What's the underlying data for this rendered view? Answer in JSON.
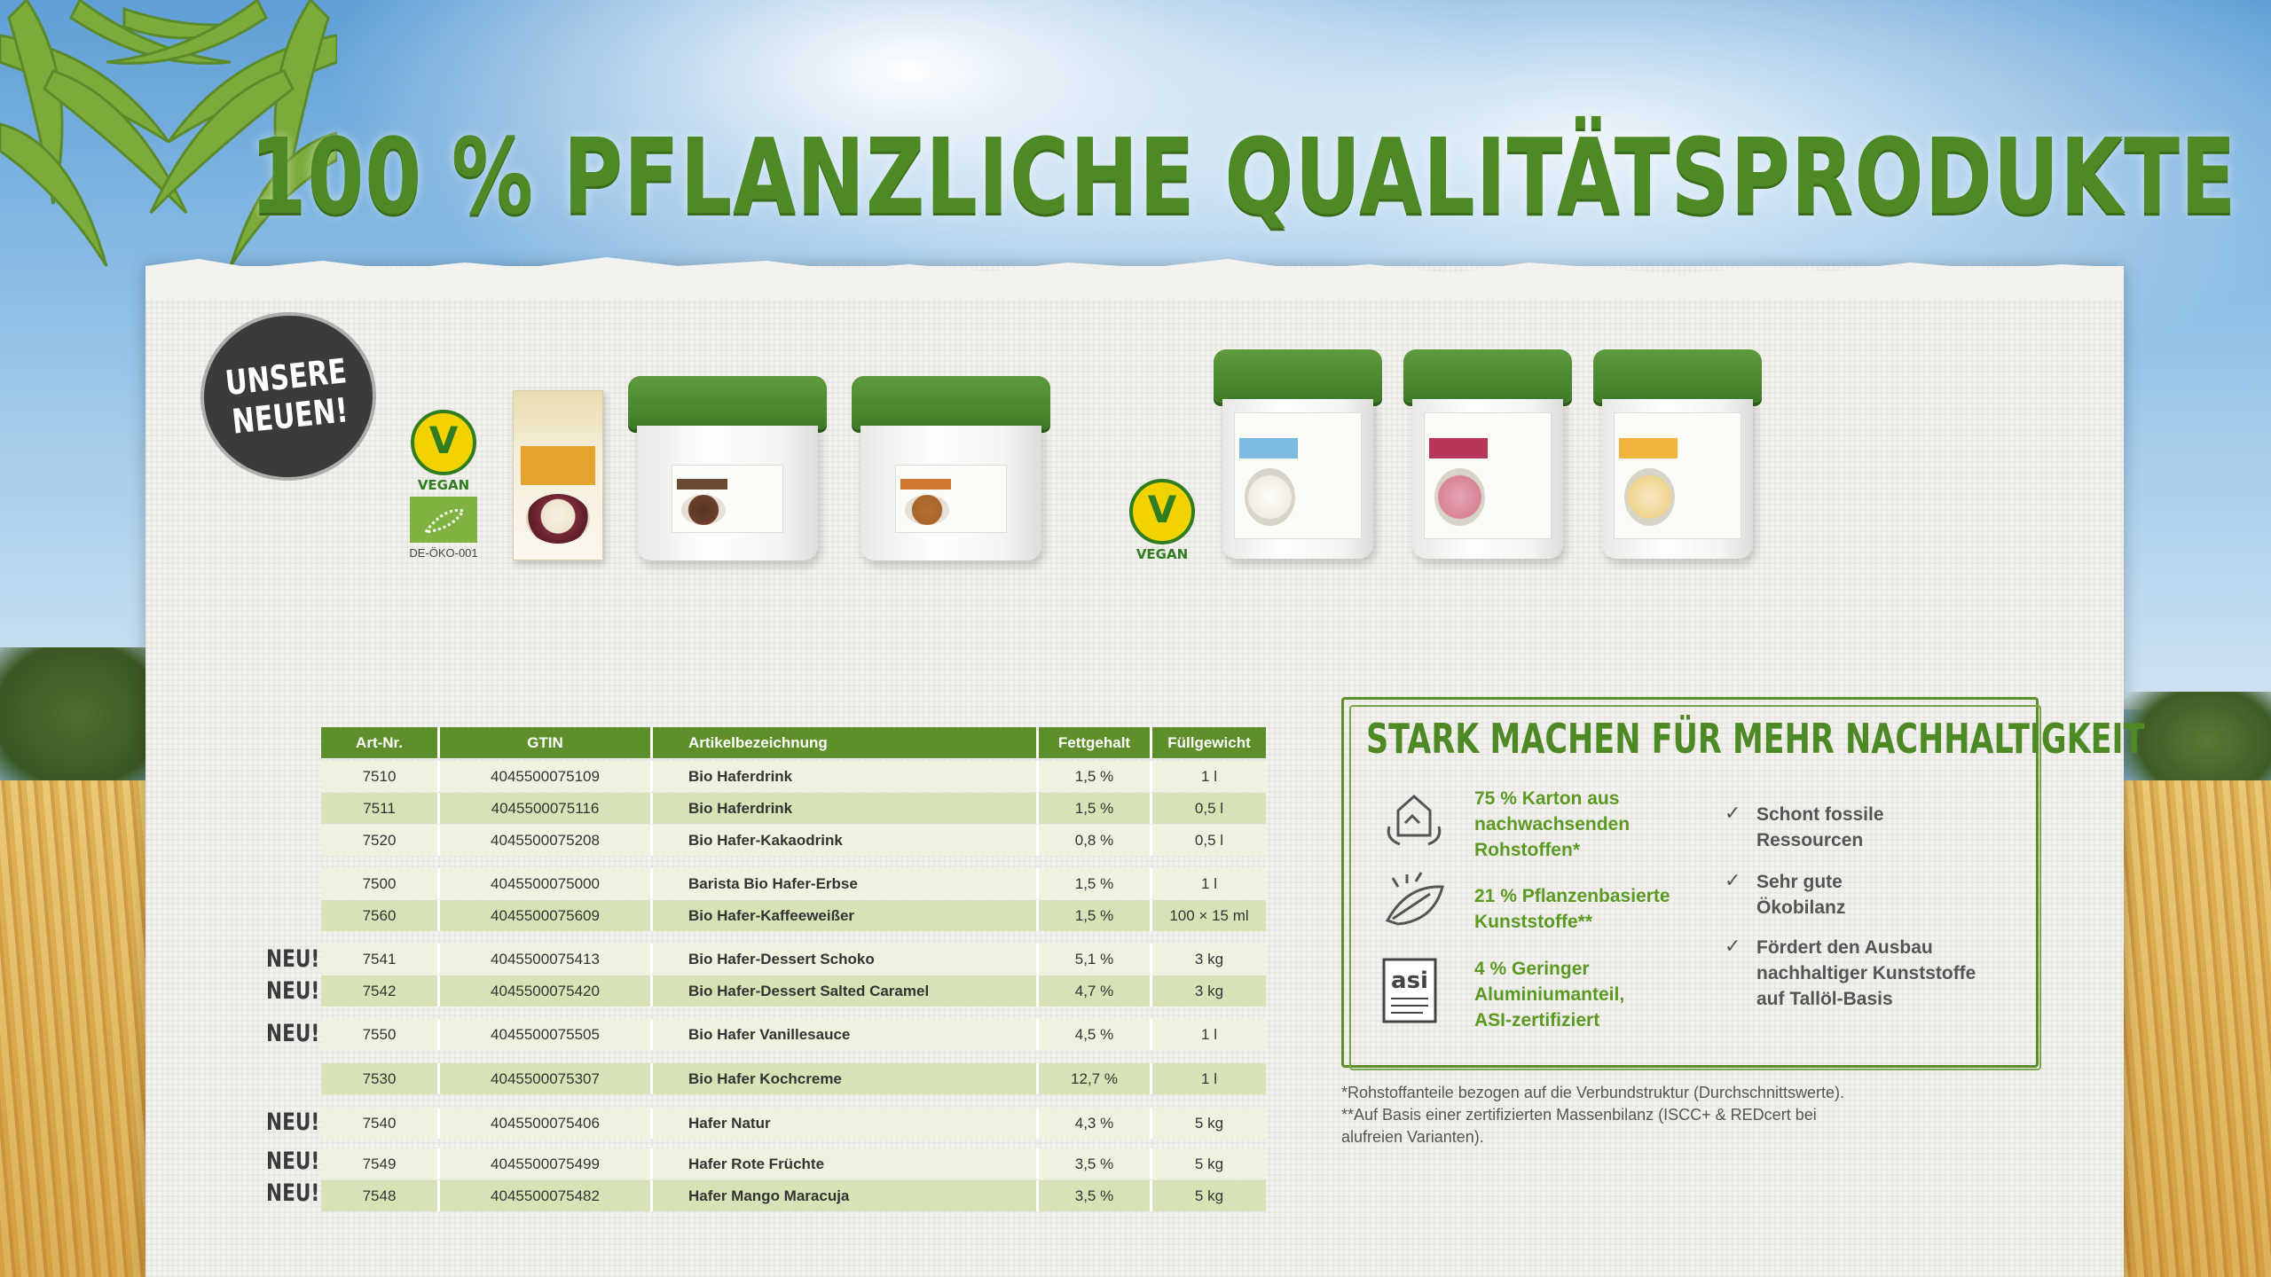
{
  "headline": "100 % PFLANZLICHE QUALITÄTSPRODUKTE",
  "badge": {
    "line1": "UNSERE",
    "line2": "NEUEN!"
  },
  "seals": {
    "vegan_label": "VEGAN",
    "eu_code": "DE-ÖKO-001"
  },
  "table": {
    "headers": [
      "Art-Nr.",
      "GTIN",
      "Artikelbezeichnung",
      "Fettgehalt",
      "Füllgewicht"
    ],
    "rows": [
      [
        "7510",
        "4045500075109",
        "Bio Haferdrink",
        "1,5 %",
        "1 l"
      ],
      [
        "7511",
        "4045500075116",
        "Bio Haferdrink",
        "1,5 %",
        "0,5 l"
      ],
      [
        "7520",
        "4045500075208",
        "Bio Hafer-Kakaodrink",
        "0,8 %",
        "0,5 l"
      ],
      [
        "7500",
        "4045500075000",
        "Barista Bio Hafer-Erbse",
        "1,5 %",
        "1 l"
      ],
      [
        "7560",
        "4045500075609",
        "Bio Hafer-Kaffeeweißer",
        "1,5 %",
        "100 × 15 ml"
      ],
      [
        "7541",
        "4045500075413",
        "Bio Hafer-Dessert Schoko",
        "5,1 %",
        "3 kg"
      ],
      [
        "7542",
        "4045500075420",
        "Bio Hafer-Dessert Salted Caramel",
        "4,7 %",
        "3 kg"
      ],
      [
        "7550",
        "4045500075505",
        "Bio Hafer Vanillesauce",
        "4,5 %",
        "1 l"
      ],
      [
        "7530",
        "4045500075307",
        "Bio Hafer Kochcreme",
        "12,7 %",
        "1 l"
      ],
      [
        "7540",
        "4045500075406",
        "Hafer Natur",
        "4,3 %",
        "5 kg"
      ],
      [
        "7549",
        "4045500075499",
        "Hafer Rote Früchte",
        "3,5 %",
        "5 kg"
      ],
      [
        "7548",
        "4045500075482",
        "Hafer Mango Maracuja",
        "3,5 %",
        "5 kg"
      ]
    ],
    "new_label": "NEU!"
  },
  "sustainability": {
    "title": "STARK MACHEN FÜR MEHR NACHHALTIGKEIT",
    "items": [
      {
        "line1": "75 % Karton aus",
        "line2": "nachwachsenden",
        "line3": "Rohstoffen*"
      },
      {
        "line1": "21 % Pflanzenbasierte",
        "line2": "Kunststoffe**",
        "line3": ""
      },
      {
        "line1": "4 % Geringer",
        "line2": "Aluminiumanteil,",
        "line3": "ASI-zertifiziert"
      }
    ],
    "checks": [
      {
        "line1": "Schont fossile",
        "line2": "Ressourcen",
        "line3": ""
      },
      {
        "line1": "Sehr gute",
        "line2": "Ökobilanz",
        "line3": ""
      },
      {
        "line1": "Fördert den Ausbau",
        "line2": "nachhaltiger Kunststoffe",
        "line3": "auf Tallöl-Basis"
      }
    ],
    "asi_logo_text": "asi",
    "footnotes": [
      "*Rohstoffanteile bezogen auf die Verbundstruktur (Durchschnittswerte).",
      "**Auf Basis einer zertifizierten Massenbilanz (ISCC+ & REDcert bei",
      "alufreien Varianten)."
    ]
  },
  "colors": {
    "brand_green": "#4d8a26",
    "header_green": "#5f8f2b",
    "row_light": "#eef2df",
    "row_dark": "#d7e3b6",
    "tub_lid": "#4a8a2e",
    "badge": "#3b3b3b"
  }
}
